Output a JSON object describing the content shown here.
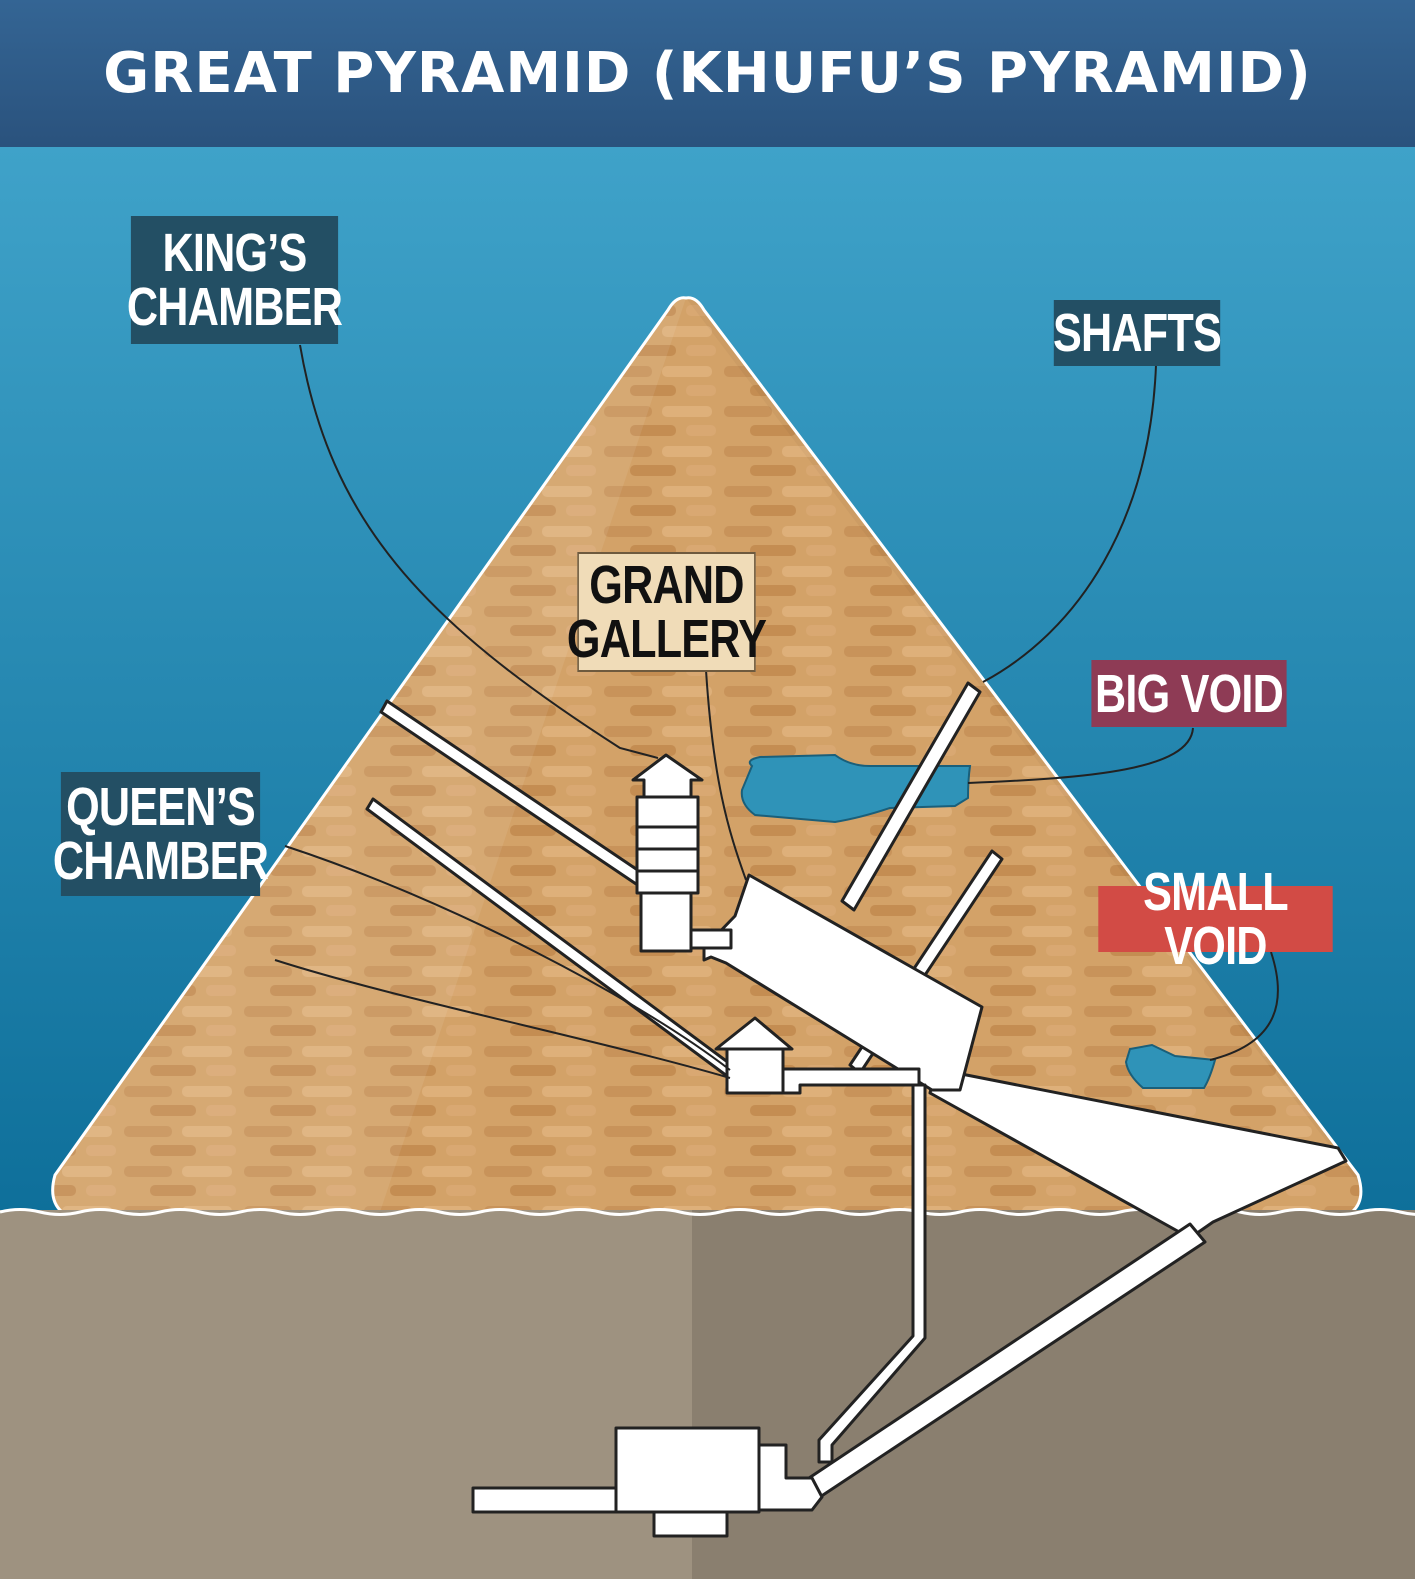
{
  "title": "GREAT PYRAMID (KHUFU’S PYRAMID)",
  "labels": {
    "kings_chamber": "KING’S\nCHAMBER",
    "shafts": "SHAFTS",
    "grand_gallery": "GRAND\nGALLERY",
    "big_void": "BIG VOID",
    "queens_chamber": "QUEEN’S\nCHAMBER",
    "small_void": "SMALL VOID"
  },
  "colors": {
    "sky_top": "#3fa2c9",
    "sky_bottom": "#0e6f9a",
    "pyramid": "#d3a268",
    "ground_left": "#9e9280",
    "ground_right": "#8a7f6f",
    "void": "#2f93b8",
    "label_dark": "#234f64",
    "label_maroon": "#8e3b55",
    "label_red": "#d24b45"
  }
}
